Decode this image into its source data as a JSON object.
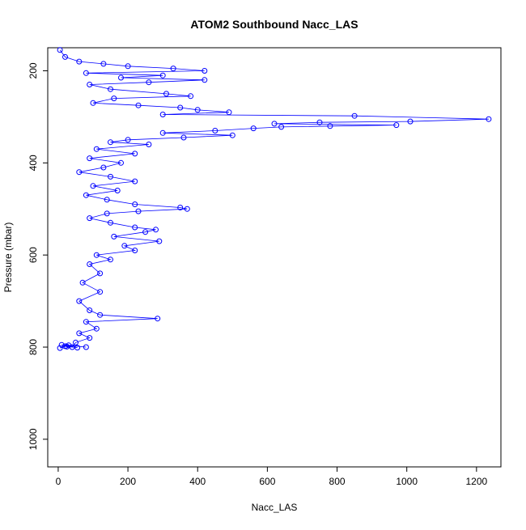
{
  "chart_data": {
    "type": "scatter",
    "title": "ATOM2 Southbound Nacc_LAS",
    "xlabel": "Nacc_LAS",
    "ylabel": "Pressure (mbar)",
    "xlim": [
      -30,
      1270
    ],
    "ylim": [
      150,
      1060
    ],
    "y_reversed": true,
    "x_ticks": [
      0,
      200,
      400,
      600,
      800,
      1000,
      1200
    ],
    "y_ticks": [
      200,
      400,
      600,
      800,
      1000
    ],
    "grid": false,
    "legend": "none",
    "series_color": "#0000ff",
    "series": [
      {
        "points": [
          [
            5,
            155
          ],
          [
            20,
            170
          ],
          [
            60,
            180
          ],
          [
            130,
            185
          ],
          [
            200,
            190
          ],
          [
            330,
            195
          ],
          [
            420,
            200
          ],
          [
            80,
            205
          ],
          [
            300,
            210
          ],
          [
            180,
            215
          ],
          [
            420,
            220
          ],
          [
            260,
            225
          ],
          [
            90,
            230
          ],
          [
            150,
            240
          ],
          [
            310,
            250
          ],
          [
            380,
            255
          ],
          [
            160,
            260
          ],
          [
            100,
            270
          ],
          [
            230,
            275
          ],
          [
            350,
            280
          ],
          [
            400,
            285
          ],
          [
            490,
            290
          ],
          [
            300,
            295
          ],
          [
            850,
            298
          ],
          [
            1235,
            305
          ],
          [
            1010,
            310
          ],
          [
            750,
            312
          ],
          [
            620,
            315
          ],
          [
            970,
            318
          ],
          [
            780,
            320
          ],
          [
            640,
            322
          ],
          [
            560,
            325
          ],
          [
            450,
            330
          ],
          [
            300,
            335
          ],
          [
            500,
            340
          ],
          [
            360,
            345
          ],
          [
            200,
            350
          ],
          [
            150,
            355
          ],
          [
            260,
            360
          ],
          [
            110,
            370
          ],
          [
            220,
            380
          ],
          [
            90,
            390
          ],
          [
            180,
            400
          ],
          [
            130,
            410
          ],
          [
            60,
            420
          ],
          [
            150,
            430
          ],
          [
            220,
            440
          ],
          [
            100,
            450
          ],
          [
            170,
            460
          ],
          [
            80,
            470
          ],
          [
            140,
            480
          ],
          [
            220,
            490
          ],
          [
            350,
            497
          ],
          [
            370,
            500
          ],
          [
            230,
            505
          ],
          [
            140,
            510
          ],
          [
            90,
            520
          ],
          [
            150,
            530
          ],
          [
            220,
            540
          ],
          [
            280,
            545
          ],
          [
            250,
            550
          ],
          [
            160,
            560
          ],
          [
            290,
            570
          ],
          [
            190,
            580
          ],
          [
            220,
            590
          ],
          [
            110,
            600
          ],
          [
            150,
            610
          ],
          [
            90,
            620
          ],
          [
            120,
            640
          ],
          [
            70,
            660
          ],
          [
            120,
            680
          ],
          [
            60,
            700
          ],
          [
            90,
            720
          ],
          [
            120,
            730
          ],
          [
            285,
            738
          ],
          [
            80,
            745
          ],
          [
            110,
            760
          ],
          [
            60,
            770
          ],
          [
            90,
            780
          ],
          [
            50,
            790
          ],
          [
            40,
            800
          ],
          [
            20,
            798
          ],
          [
            5,
            802
          ],
          [
            30,
            796
          ],
          [
            80,
            800
          ],
          [
            10,
            795
          ],
          [
            55,
            801
          ],
          [
            25,
            799
          ]
        ]
      }
    ]
  }
}
